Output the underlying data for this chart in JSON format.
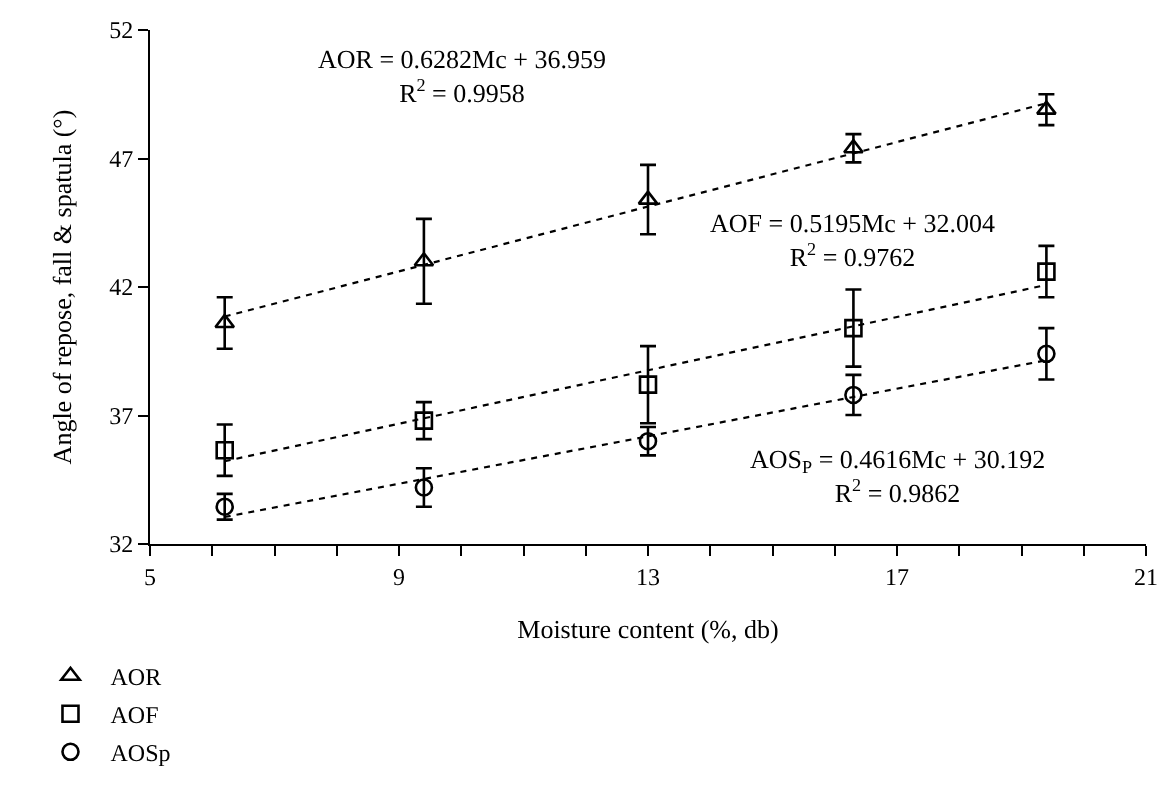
{
  "chart_data": {
    "type": "scatter",
    "xlabel": "Moisture content (%, db)",
    "ylabel": "Angle of repose, fall & spatula (°)",
    "x": [
      6.2,
      9.4,
      13.0,
      16.3,
      19.4
    ],
    "series": [
      {
        "name": "AOR",
        "color": "#000000",
        "marker": "triangle",
        "values": [
          40.6,
          43.0,
          45.4,
          47.4,
          48.9
        ],
        "errors": [
          1.0,
          1.65,
          1.35,
          0.55,
          0.6
        ]
      },
      {
        "name": "AOF",
        "color": "#000000",
        "marker": "square",
        "values": [
          35.65,
          36.8,
          38.2,
          40.4,
          42.6
        ],
        "errors": [
          1.0,
          0.72,
          1.5,
          1.5,
          1.0
        ]
      },
      {
        "name": "AOSp",
        "color": "#000000",
        "marker": "circle",
        "values": [
          33.45,
          34.2,
          36.0,
          37.8,
          39.4
        ],
        "errors": [
          0.5,
          0.75,
          0.55,
          0.78,
          1.0
        ]
      },
      {
        "type": "line",
        "color": "#000000",
        "line_style": "dotted",
        "marker": "none",
        "values": [
          40.85,
          42.86,
          45.13,
          47.2,
          49.15
        ]
      },
      {
        "type": "line",
        "color": "#000000",
        "line_style": "dotted",
        "marker": "none",
        "values": [
          35.22,
          36.89,
          38.76,
          40.47,
          42.08
        ]
      },
      {
        "type": "line",
        "color": "#000000",
        "line_style": "dotted",
        "marker": "none",
        "values": [
          33.05,
          34.53,
          36.19,
          37.72,
          39.15
        ]
      }
    ],
    "xlim": [
      5,
      21
    ],
    "xticks": [
      5,
      {
        "value": 6,
        "label": null
      },
      {
        "value": 7,
        "label": null
      },
      {
        "value": 8,
        "label": null
      },
      9,
      {
        "value": 10,
        "label": null
      },
      {
        "value": 11,
        "label": null
      },
      {
        "value": 12,
        "label": null
      },
      13,
      {
        "value": 14,
        "label": null
      },
      {
        "value": 15,
        "label": null
      },
      {
        "value": 16,
        "label": null
      },
      17,
      {
        "value": 18,
        "label": null
      },
      {
        "value": 19,
        "label": null
      },
      {
        "value": 20,
        "label": null
      },
      21
    ],
    "ylim": [
      32,
      52
    ],
    "yticks": [
      32,
      37,
      42,
      47,
      52
    ],
    "annotations": [
      "AOR = 0.6282Mc + 36.959\nR$^{2}$ = 0.9958",
      "AOF = 0.5195Mc + 32.004\nR$^{2}$ = 0.9762",
      "AOS$_{P}$ = 0.4616Mc + 30.192\nR$^{2}$ = 0.9862"
    ],
    "legend": "bottom left"
  }
}
